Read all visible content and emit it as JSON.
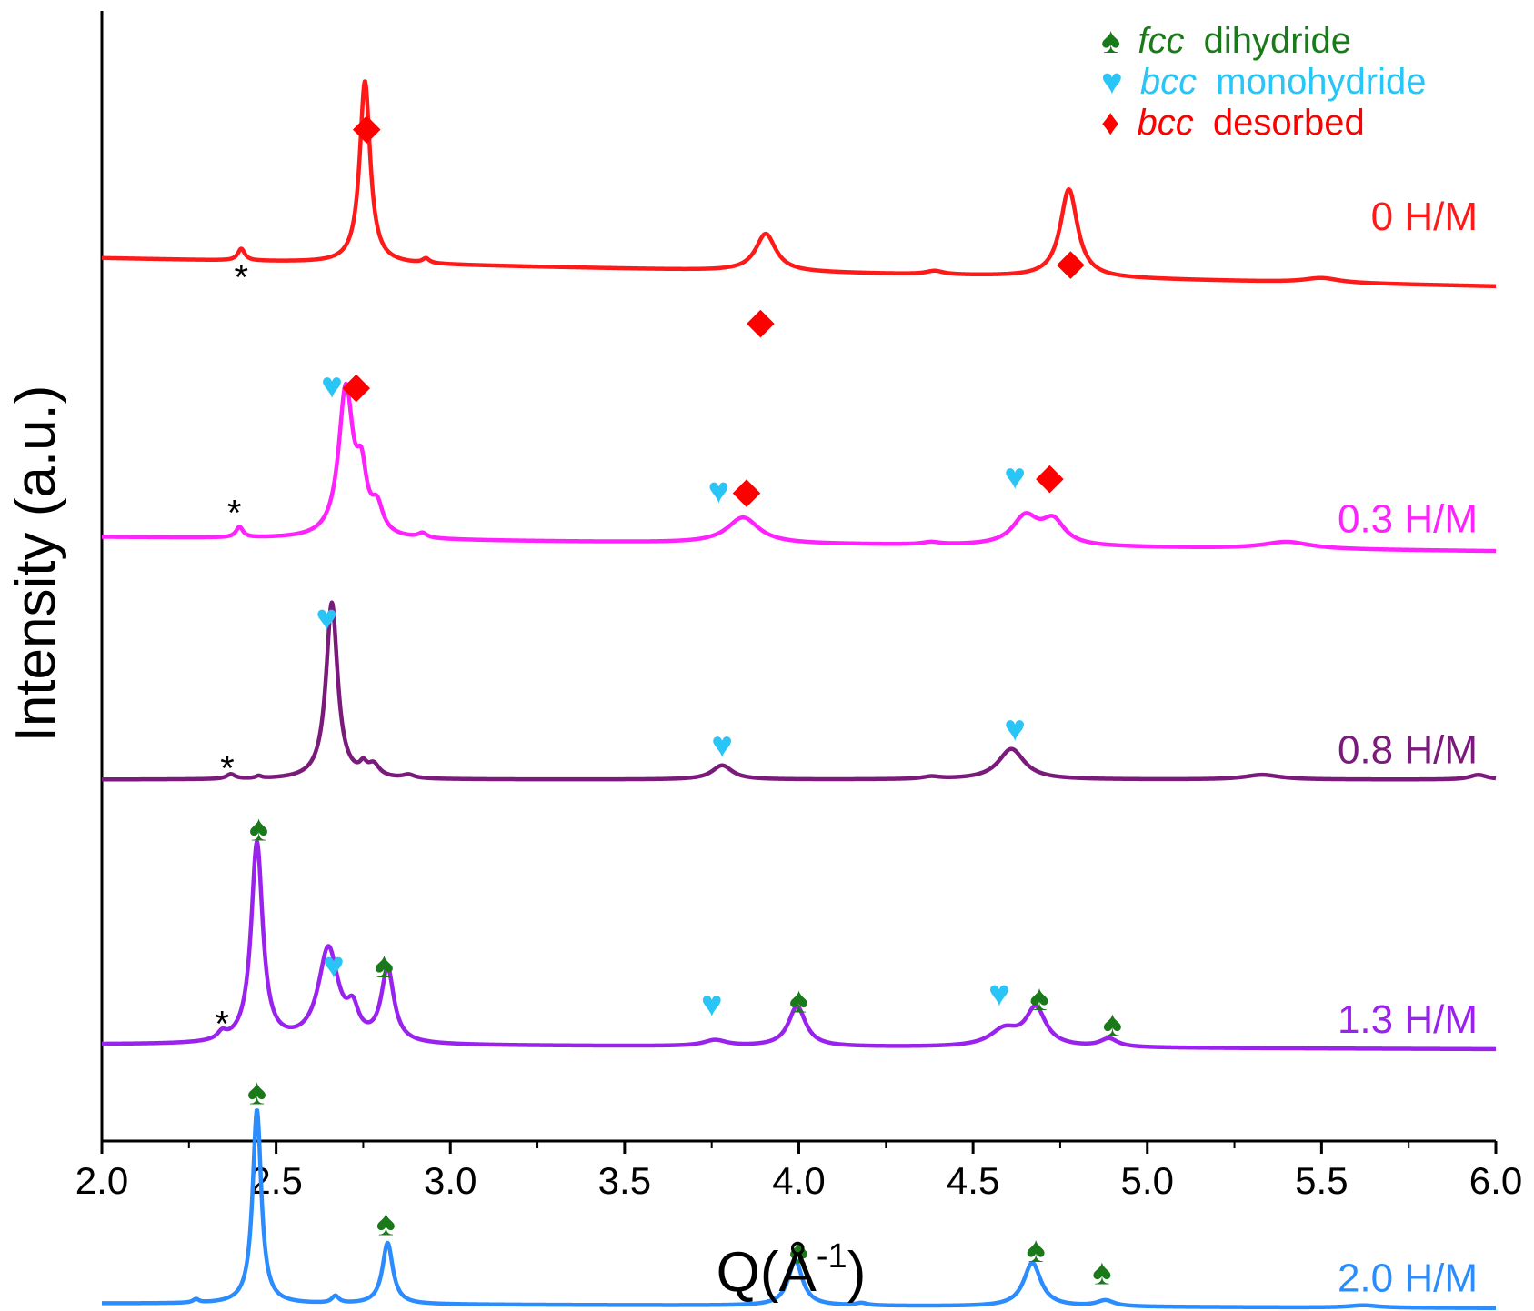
{
  "chart_data": {
    "type": "line",
    "title": "",
    "xlabel": "Q(Å-1)",
    "xlabel_parts": {
      "base": "Q(Å",
      "sup": "-1",
      "close": ")"
    },
    "ylabel": "Intensity (a.u.)",
    "xlim": [
      2.0,
      6.0
    ],
    "ylim": [
      0,
      9.6
    ],
    "xticks": [
      2.0,
      2.5,
      3.0,
      3.5,
      4.0,
      4.5,
      5.0,
      5.5,
      6.0
    ],
    "xtick_labels": [
      "2.0",
      "2.5",
      "3.0",
      "3.5",
      "4.0",
      "4.5",
      "5.0",
      "5.5",
      "6.0"
    ],
    "x_minor_step": 0.25,
    "grid": false,
    "legend_position": "top-right",
    "legend": [
      {
        "symbol": "♠",
        "phase": "fcc",
        "text": "dihydride",
        "color": "#1a7a1a"
      },
      {
        "symbol": "♥",
        "phase": "bcc",
        "text": "monohydride",
        "color": "#29c5f6"
      },
      {
        "symbol": "♦",
        "phase": "bcc",
        "text": "desorbed",
        "color": "#ff0000"
      }
    ],
    "series": [
      {
        "name": "0 H/M",
        "color": "#ff1a1a",
        "baseline": 7.5,
        "slope": -0.06,
        "peaks": [
          [
            2.4,
            0.1,
            0.012
          ],
          [
            2.755,
            1.55,
            0.018
          ],
          [
            2.93,
            0.04,
            0.012
          ],
          [
            3.905,
            0.32,
            0.035
          ],
          [
            4.39,
            0.03,
            0.03
          ],
          [
            4.775,
            0.75,
            0.03
          ],
          [
            5.5,
            0.04,
            0.06
          ]
        ],
        "markers": [
          [
            "◆",
            2.76,
            8.62
          ],
          [
            "◆",
            3.89,
            6.97
          ],
          [
            "◆",
            4.78,
            7.47
          ],
          [
            "*",
            2.4,
            7.34
          ]
        ]
      },
      {
        "name": "0.3 H/M",
        "color": "#ff22ff",
        "baseline": 5.13,
        "slope": -0.03,
        "peaks": [
          [
            2.395,
            0.09,
            0.012
          ],
          [
            2.7,
            1.25,
            0.025
          ],
          [
            2.745,
            0.45,
            0.018
          ],
          [
            2.79,
            0.22,
            0.02
          ],
          [
            2.92,
            0.04,
            0.015
          ],
          [
            3.84,
            0.22,
            0.055
          ],
          [
            4.38,
            0.02,
            0.03
          ],
          [
            4.65,
            0.24,
            0.045
          ],
          [
            4.73,
            0.2,
            0.04
          ],
          [
            5.4,
            0.06,
            0.08
          ]
        ],
        "markers": [
          [
            "♥",
            2.66,
            6.42
          ],
          [
            "◆",
            2.73,
            6.42
          ],
          [
            "♥",
            3.77,
            5.53
          ],
          [
            "◆",
            3.85,
            5.53
          ],
          [
            "♥",
            4.62,
            5.65
          ],
          [
            "◆",
            4.72,
            5.65
          ],
          [
            "*",
            2.38,
            5.34
          ]
        ]
      },
      {
        "name": "0.8 H/M",
        "color": "#7a1a7a",
        "baseline": 3.07,
        "slope": 0.0,
        "peaks": [
          [
            2.37,
            0.04,
            0.015
          ],
          [
            2.45,
            0.02,
            0.01
          ],
          [
            2.66,
            1.5,
            0.02
          ],
          [
            2.75,
            0.08,
            0.012
          ],
          [
            2.78,
            0.1,
            0.02
          ],
          [
            2.88,
            0.03,
            0.02
          ],
          [
            3.78,
            0.12,
            0.035
          ],
          [
            4.38,
            0.02,
            0.03
          ],
          [
            4.61,
            0.26,
            0.045
          ],
          [
            5.33,
            0.04,
            0.06
          ],
          [
            5.95,
            0.04,
            0.03
          ]
        ],
        "markers": [
          [
            "♥",
            2.645,
            4.45
          ],
          [
            "♥",
            3.78,
            3.37
          ],
          [
            "♥",
            4.62,
            3.51
          ],
          [
            "*",
            2.36,
            3.17
          ]
        ]
      },
      {
        "name": "1.3 H/M",
        "color": "#9a22ee",
        "baseline": 0.82,
        "slope": -0.01,
        "peaks": [
          [
            2.345,
            0.06,
            0.015
          ],
          [
            2.445,
            1.7,
            0.02
          ],
          [
            2.65,
            0.8,
            0.035
          ],
          [
            2.72,
            0.22,
            0.02
          ],
          [
            2.82,
            0.62,
            0.022
          ],
          [
            3.76,
            0.05,
            0.04
          ],
          [
            3.995,
            0.34,
            0.03
          ],
          [
            4.59,
            0.14,
            0.05
          ],
          [
            4.68,
            0.32,
            0.035
          ],
          [
            4.89,
            0.07,
            0.03
          ]
        ],
        "markers": [
          [
            "♠",
            2.45,
            2.66
          ],
          [
            "♥",
            2.665,
            1.5
          ],
          [
            "♠",
            2.81,
            1.5
          ],
          [
            "♥",
            3.75,
            1.17
          ],
          [
            "♠",
            4.0,
            1.2
          ],
          [
            "♥",
            4.575,
            1.26
          ],
          [
            "♠",
            4.69,
            1.22
          ],
          [
            "♠",
            4.9,
            1.0
          ],
          [
            "*",
            2.345,
            1.0
          ]
        ]
      },
      {
        "name": "2.0 H/M",
        "color": "#2a8cff",
        "baseline": -1.38,
        "slope": -0.01,
        "peaks": [
          [
            2.27,
            0.03,
            0.01
          ],
          [
            2.445,
            1.65,
            0.015
          ],
          [
            2.67,
            0.06,
            0.012
          ],
          [
            2.82,
            0.52,
            0.018
          ],
          [
            3.99,
            0.38,
            0.025
          ],
          [
            4.18,
            0.02,
            0.02
          ],
          [
            4.67,
            0.37,
            0.03
          ],
          [
            4.88,
            0.05,
            0.03
          ],
          [
            5.62,
            0.02,
            0.05
          ]
        ],
        "markers": [
          [
            "♠",
            2.445,
            0.42
          ],
          [
            "♠",
            2.815,
            -0.69
          ],
          [
            "♠",
            4.0,
            -0.93
          ],
          [
            "♠",
            4.68,
            -0.92
          ],
          [
            "♠",
            4.87,
            -1.11
          ]
        ]
      }
    ]
  }
}
